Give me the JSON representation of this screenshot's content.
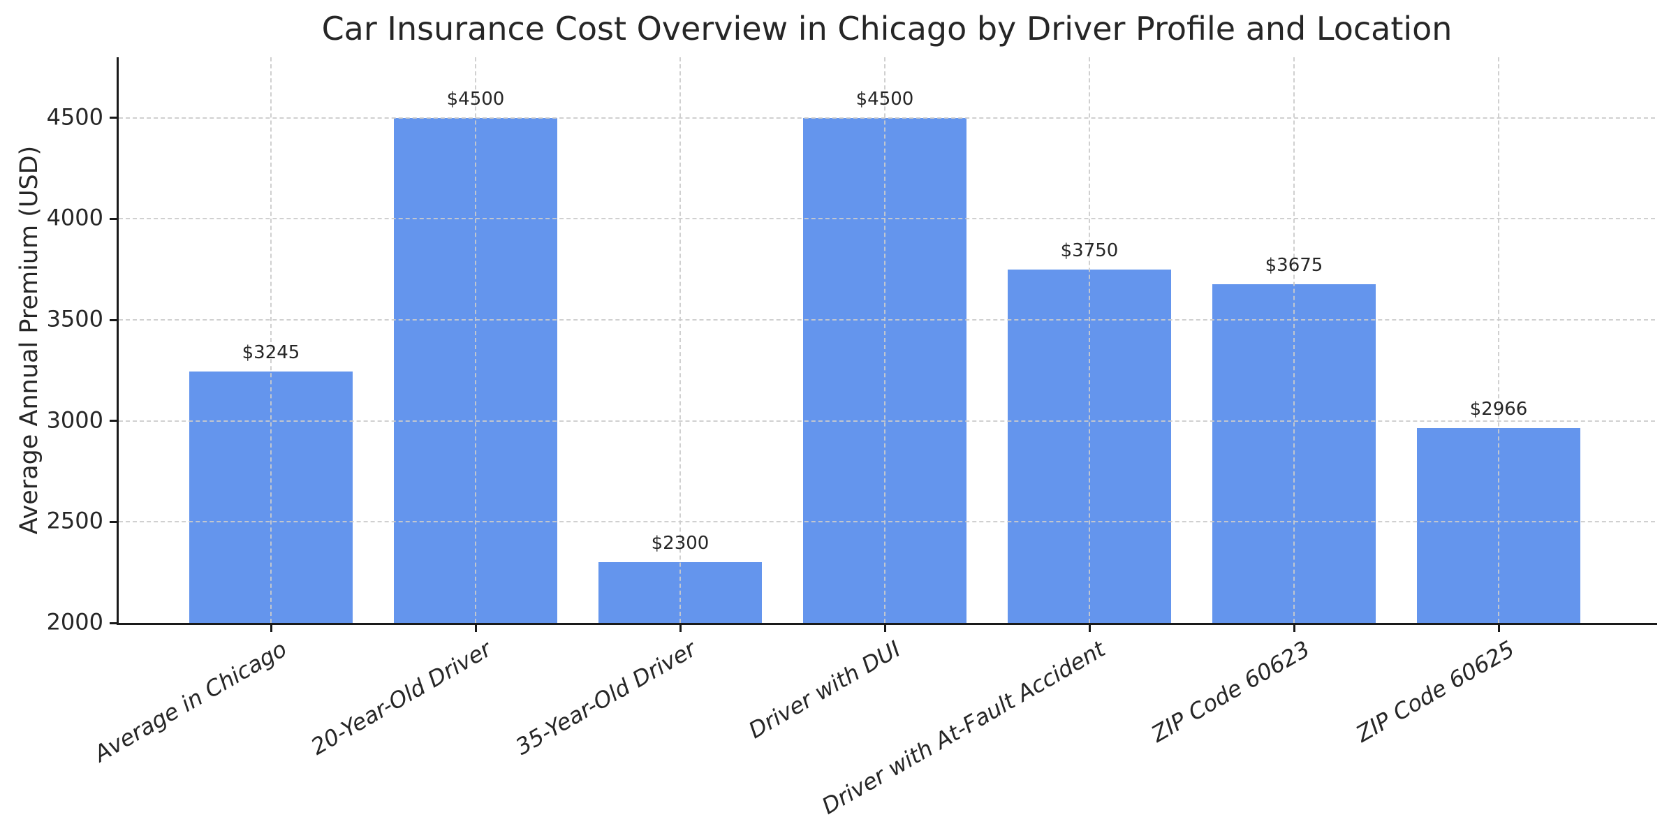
{
  "chart_data": {
    "type": "bar",
    "title": "Car Insurance Cost Overview in Chicago by Driver Profile and Location",
    "xlabel": "",
    "ylabel": "Average Annual Premium (USD)",
    "categories": [
      "Average in Chicago",
      "20-Year-Old Driver",
      "35-Year-Old Driver",
      "Driver with DUI",
      "Driver with At-Fault Accident",
      "ZIP Code 60623",
      "ZIP Code 60625"
    ],
    "values": [
      3245,
      4500,
      2300,
      4500,
      3750,
      3675,
      2966
    ],
    "bar_value_labels": [
      "$3245",
      "$4500",
      "$2300",
      "$4500",
      "$3750",
      "$3675",
      "$2966"
    ],
    "yticks": [
      2000,
      2500,
      3000,
      3500,
      4000,
      4500
    ],
    "ylim": [
      2000,
      4800
    ],
    "grid": "dashed",
    "legend_position": "none",
    "bar_color": "#6495ed",
    "grid_color": "#cccccc",
    "axis_color": "#1a1a1a",
    "text_color": "#262626"
  }
}
